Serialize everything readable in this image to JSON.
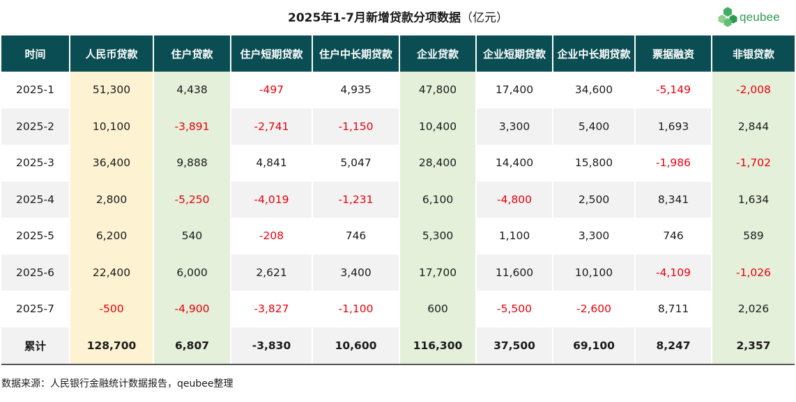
{
  "title": "2025年1-7月新增贷款分项数据",
  "title_unit": "（亿元）",
  "logo_text": "qeubee",
  "colors": {
    "header_bg": "#0a4d52",
    "rmb_col_bg": "#fdf2d2",
    "highlight_col_bg": "#e4f0da",
    "negative_text": "#e8000b",
    "logo": "#2d9a52"
  },
  "table": {
    "headers": [
      "时间",
      "人民币贷款",
      "住户贷款",
      "住户短期贷款",
      "住户中长期贷款",
      "企业贷款",
      "企业短期贷款",
      "企业中长期贷款",
      "票据融资",
      "非银贷款"
    ],
    "rows": [
      [
        "2025-1",
        "51,300",
        "4,438",
        "-497",
        "4,935",
        "47,800",
        "17,400",
        "34,600",
        "-5,149",
        "-2,008"
      ],
      [
        "2025-2",
        "10,100",
        "-3,891",
        "-2,741",
        "-1,150",
        "10,400",
        "3,300",
        "5,400",
        "1,693",
        "2,844"
      ],
      [
        "2025-3",
        "36,400",
        "9,888",
        "4,841",
        "5,047",
        "28,400",
        "14,400",
        "15,800",
        "-1,986",
        "-1,702"
      ],
      [
        "2025-4",
        "2,800",
        "-5,250",
        "-4,019",
        "-1,231",
        "6,100",
        "-4,800",
        "2,500",
        "8,341",
        "1,634"
      ],
      [
        "2025-5",
        "6,200",
        "540",
        "-208",
        "746",
        "5,300",
        "1,100",
        "3,300",
        "746",
        "589"
      ],
      [
        "2025-6",
        "22,400",
        "6,000",
        "2,621",
        "3,400",
        "17,700",
        "11,600",
        "10,100",
        "-4,109",
        "-1,026"
      ],
      [
        "2025-7",
        "-500",
        "-4,900",
        "-3,827",
        "-1,100",
        "600",
        "-5,500",
        "-2,600",
        "8,711",
        "2,026"
      ]
    ],
    "total": [
      "累计",
      "128,700",
      "6,807",
      "-3,830",
      "10,600",
      "116,300",
      "37,500",
      "69,100",
      "8,247",
      "2,357"
    ]
  },
  "source": "数据来源：人民银行金融统计数据报告，qeubee整理"
}
